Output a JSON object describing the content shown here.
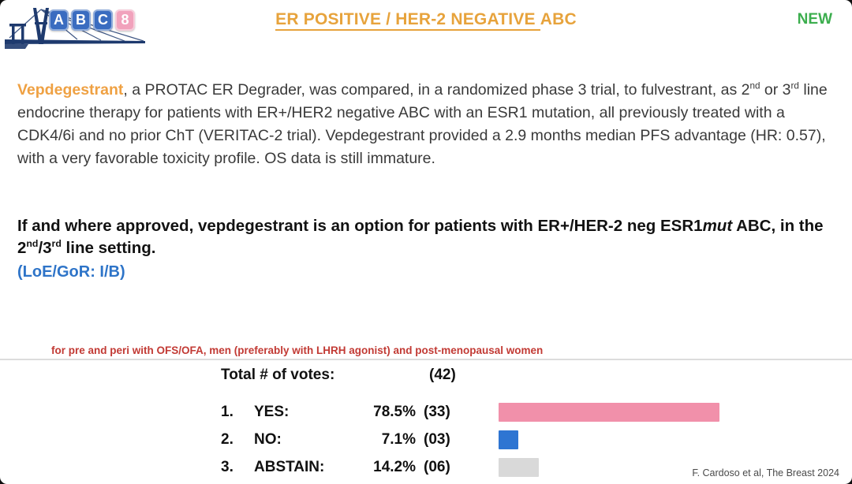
{
  "logo": {
    "letters": [
      "A",
      "B",
      "C",
      "8"
    ],
    "box_colors": [
      "#3a6cc0",
      "#3a6cc0",
      "#3a6cc0",
      "#f1a2bc"
    ],
    "bridge_color": "#1e3a6e"
  },
  "header": {
    "title_segments": [
      {
        "t": "ER POSITIVE / HER-2 NEGATIVE ",
        "cls": "u"
      },
      {
        "t": "ABC"
      }
    ],
    "title_color": "#e7a33c",
    "new_badge": "NEW",
    "new_color": "#3cae4e"
  },
  "summary": {
    "segments": [
      {
        "t": "Vepdegestrant",
        "cls": "orange"
      },
      {
        "t": ", a PROTAC ER Degrader, was compared, in a randomized phase 3 trial, to fulvestrant, as 2"
      },
      {
        "t": "nd",
        "sup": true
      },
      {
        "t": " or 3"
      },
      {
        "t": "rd",
        "sup": true
      },
      {
        "t": " line endocrine therapy for patients with ER+/HER2 negative ABC with an ESR1 mutation, all previously treated with a CDK4/6i and no prior ChT (VERITAC-2 trial). Vepdegestrant provided a 2.9 months median PFS advantage (HR: 0.57), with a very favorable toxicity profile. OS data is still immature."
      }
    ]
  },
  "statement": {
    "segments": [
      {
        "t": "If and where approved, vepdegestrant is an option for patients with ER+/HER-2 neg ESR1"
      },
      {
        "t": "mut",
        "cls": "italic"
      },
      {
        "t": " ABC, in the 2"
      },
      {
        "t": "nd",
        "sup": true
      },
      {
        "t": "/3"
      },
      {
        "t": "rd",
        "sup": true
      },
      {
        "t": " line setting."
      }
    ],
    "loe": "(LoE/GoR: I/B)",
    "loe_color": "#2e74c8"
  },
  "red_note": {
    "text": "for pre and peri with OFS/OFA, men (preferably with LHRH agonist) and post-menopausal women",
    "color": "#c23a34"
  },
  "votes": {
    "total_label": "Total # of votes:",
    "total_value": "(42)",
    "rows": [
      {
        "num": "1.",
        "label": "YES:",
        "pct": "78.5%",
        "pct_value": 78.5,
        "count": "(33)",
        "color": "#f190aa"
      },
      {
        "num": "2.",
        "label": "NO:",
        "pct": "7.1%",
        "pct_value": 7.1,
        "count": "(03)",
        "color": "#2e75d2"
      },
      {
        "num": "3.",
        "label": "ABSTAIN:",
        "pct": "14.2%",
        "pct_value": 14.2,
        "count": "(06)",
        "color": "#d9d9d9"
      }
    ]
  },
  "citation": "F. Cardoso et al, The Breast 2024"
}
